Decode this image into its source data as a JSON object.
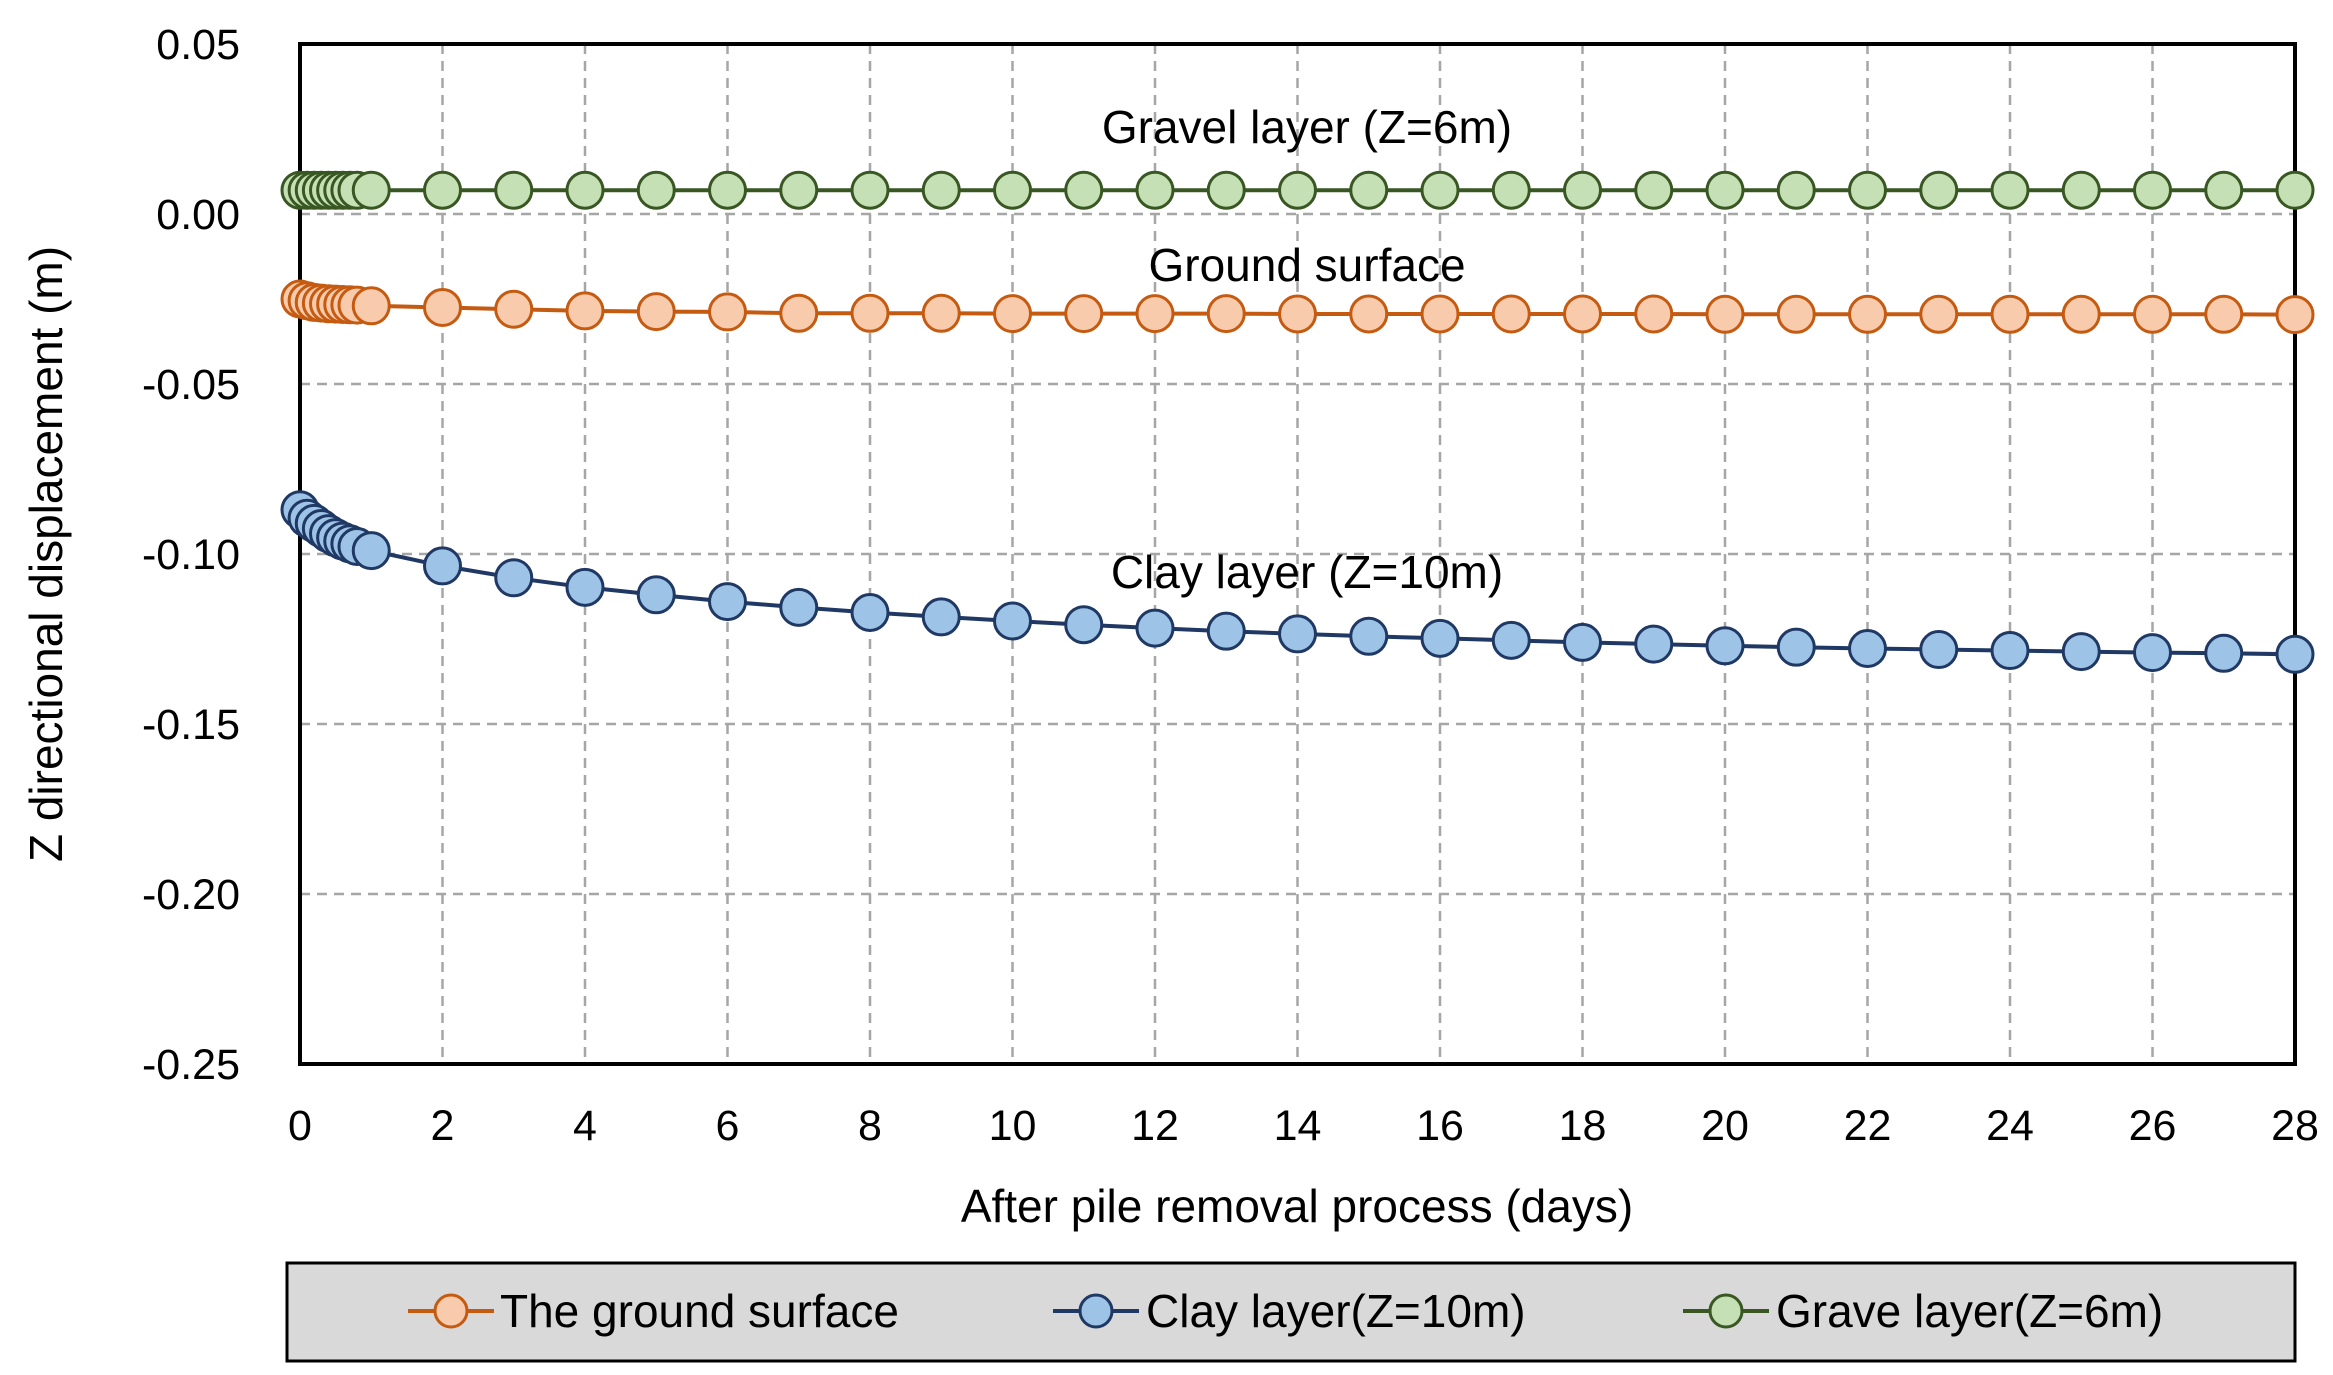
{
  "chart_data": {
    "type": "line",
    "title": "",
    "xlabel": "After pile removal process (days)",
    "ylabel": "Z directional displacement (m)",
    "xlim": [
      0,
      28
    ],
    "ylim": [
      -0.25,
      0.05
    ],
    "grid": true,
    "legend_position": "bottom",
    "x_ticks": [
      "0",
      "2",
      "4",
      "6",
      "8",
      "10",
      "12",
      "14",
      "16",
      "18",
      "20",
      "22",
      "24",
      "26",
      "28"
    ],
    "y_ticks": [
      "0.05",
      "0.00",
      "-0.05",
      "-0.10",
      "-0.15",
      "-0.20",
      "-0.25"
    ],
    "annotations": [
      {
        "text": "Gravel layer (Z=6m)",
        "x": 14.5,
        "y": 0.025
      },
      {
        "text": "Ground surface",
        "x": 14.5,
        "y": -0.016
      },
      {
        "text": "Clay layer (Z=10m)",
        "x": 14.5,
        "y": -0.106
      }
    ],
    "x": [
      0,
      0.1,
      0.2,
      0.3,
      0.4,
      0.5,
      0.6,
      0.7,
      0.8,
      1,
      2,
      3,
      4,
      5,
      6,
      7,
      8,
      9,
      10,
      11,
      12,
      13,
      14,
      15,
      16,
      17,
      18,
      19,
      20,
      21,
      22,
      23,
      24,
      25,
      26,
      27,
      28
    ],
    "series": [
      {
        "name": "The ground surface",
        "line_color": "#c55a11",
        "marker_fill": "#f8cbad",
        "values": [
          -0.025,
          -0.0255,
          -0.026,
          -0.0262,
          -0.0264,
          -0.0265,
          -0.0266,
          -0.0267,
          -0.0268,
          -0.027,
          -0.0275,
          -0.028,
          -0.0285,
          -0.0287,
          -0.0288,
          -0.0292,
          -0.0292,
          -0.0292,
          -0.0293,
          -0.0293,
          -0.0293,
          -0.0293,
          -0.0294,
          -0.0294,
          -0.0294,
          -0.0294,
          -0.0294,
          -0.0294,
          -0.0295,
          -0.0295,
          -0.0295,
          -0.0295,
          -0.0295,
          -0.0295,
          -0.0295,
          -0.0295,
          -0.0296
        ]
      },
      {
        "name": "Clay layer(Z=10m)",
        "line_color": "#1f3864",
        "marker_fill": "#9dc3e6",
        "values": [
          -0.087,
          -0.0895,
          -0.091,
          -0.0925,
          -0.094,
          -0.0952,
          -0.0962,
          -0.097,
          -0.0978,
          -0.099,
          -0.1035,
          -0.107,
          -0.1098,
          -0.112,
          -0.114,
          -0.1157,
          -0.1172,
          -0.1185,
          -0.1197,
          -0.1208,
          -0.1218,
          -0.1227,
          -0.1235,
          -0.1242,
          -0.1248,
          -0.1254,
          -0.126,
          -0.1265,
          -0.127,
          -0.1274,
          -0.1278,
          -0.1281,
          -0.1284,
          -0.1287,
          -0.129,
          -0.1292,
          -0.1295
        ]
      },
      {
        "name": "Grave layer(Z=6m)",
        "line_color": "#385723",
        "marker_fill": "#c5e0b4",
        "values": [
          0.007,
          0.007,
          0.007,
          0.007,
          0.007,
          0.007,
          0.007,
          0.007,
          0.007,
          0.007,
          0.007,
          0.007,
          0.007,
          0.007,
          0.007,
          0.007,
          0.007,
          0.007,
          0.007,
          0.007,
          0.007,
          0.007,
          0.007,
          0.007,
          0.007,
          0.007,
          0.007,
          0.007,
          0.007,
          0.007,
          0.007,
          0.007,
          0.007,
          0.007,
          0.007,
          0.007,
          0.007
        ]
      }
    ],
    "legend_background": "#d9d9d9"
  }
}
